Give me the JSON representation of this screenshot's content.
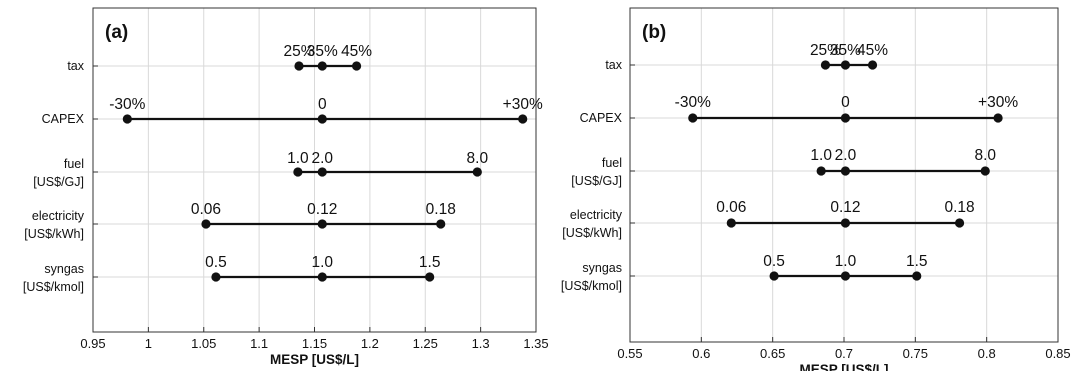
{
  "chart_data": [
    {
      "type": "tornado",
      "panel_label": "(a)",
      "xlabel": "MESP [US$/L]",
      "xlim": [
        0.95,
        1.35
      ],
      "xticks": [
        0.95,
        1,
        1.05,
        1.1,
        1.15,
        1.2,
        1.25,
        1.3,
        1.35
      ],
      "xtick_labels": [
        "0.95",
        "1",
        "1.05",
        "1.1",
        "1.15",
        "1.2",
        "1.25",
        "1.3",
        "1.35"
      ],
      "grid": true,
      "rows": [
        {
          "label": [
            "tax"
          ],
          "points": [
            {
              "x": 1.136,
              "label": "25%"
            },
            {
              "x": 1.157,
              "label": "35%"
            },
            {
              "x": 1.188,
              "label": "45%"
            }
          ]
        },
        {
          "label": [
            "CAPEX"
          ],
          "points": [
            {
              "x": 0.981,
              "label": "-30%"
            },
            {
              "x": 1.157,
              "label": "0"
            },
            {
              "x": 1.338,
              "label": "+30%"
            }
          ]
        },
        {
          "label": [
            "fuel",
            "[US$/GJ]"
          ],
          "points": [
            {
              "x": 1.135,
              "label": "1.0"
            },
            {
              "x": 1.157,
              "label": "2.0"
            },
            {
              "x": 1.297,
              "label": "8.0"
            }
          ]
        },
        {
          "label": [
            "electricity",
            "[US$/kWh]"
          ],
          "points": [
            {
              "x": 1.052,
              "label": "0.06"
            },
            {
              "x": 1.157,
              "label": "0.12"
            },
            {
              "x": 1.264,
              "label": "0.18"
            }
          ]
        },
        {
          "label": [
            "syngas",
            "[US$/kmol]"
          ],
          "points": [
            {
              "x": 1.061,
              "label": "0.5"
            },
            {
              "x": 1.157,
              "label": "1.0"
            },
            {
              "x": 1.254,
              "label": "1.5"
            }
          ]
        }
      ]
    },
    {
      "type": "tornado",
      "panel_label": "(b)",
      "xlabel": "MESP [US$/L]",
      "xlim": [
        0.55,
        0.85
      ],
      "xticks": [
        0.55,
        0.6,
        0.65,
        0.7,
        0.75,
        0.8,
        0.85
      ],
      "xtick_labels": [
        "0.55",
        "0.6",
        "0.65",
        "0.7",
        "0.75",
        "0.8",
        "0.85"
      ],
      "grid": true,
      "rows": [
        {
          "label": [
            "tax"
          ],
          "points": [
            {
              "x": 0.687,
              "label": "25%"
            },
            {
              "x": 0.701,
              "label": "35%"
            },
            {
              "x": 0.72,
              "label": "45%"
            }
          ]
        },
        {
          "label": [
            "CAPEX"
          ],
          "points": [
            {
              "x": 0.594,
              "label": "-30%"
            },
            {
              "x": 0.701,
              "label": "0"
            },
            {
              "x": 0.808,
              "label": "+30%"
            }
          ]
        },
        {
          "label": [
            "fuel",
            "[US$/GJ]"
          ],
          "points": [
            {
              "x": 0.684,
              "label": "1.0"
            },
            {
              "x": 0.701,
              "label": "2.0"
            },
            {
              "x": 0.799,
              "label": "8.0"
            }
          ]
        },
        {
          "label": [
            "electricity",
            "[US$/kWh]"
          ],
          "points": [
            {
              "x": 0.621,
              "label": "0.06"
            },
            {
              "x": 0.701,
              "label": "0.12"
            },
            {
              "x": 0.781,
              "label": "0.18"
            }
          ]
        },
        {
          "label": [
            "syngas",
            "[US$/kmol]"
          ],
          "points": [
            {
              "x": 0.651,
              "label": "0.5"
            },
            {
              "x": 0.701,
              "label": "1.0"
            },
            {
              "x": 0.751,
              "label": "1.5"
            }
          ]
        }
      ]
    }
  ]
}
